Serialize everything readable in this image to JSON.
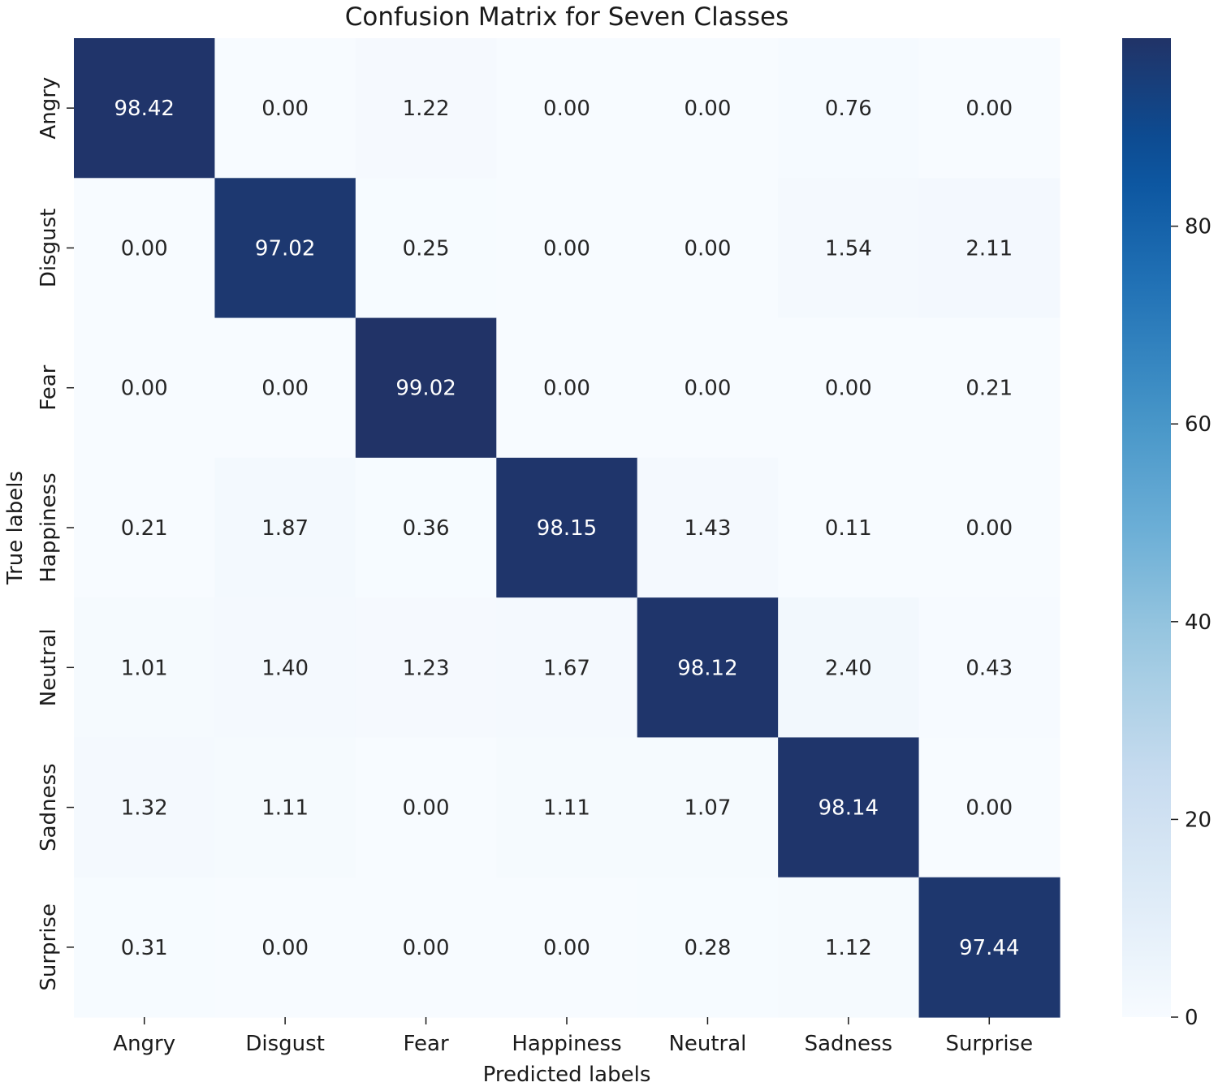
{
  "chart_data": {
    "type": "heatmap",
    "title": "Confusion Matrix for Seven Classes",
    "xlabel": "Predicted labels",
    "ylabel": "True labels",
    "x_categories": [
      "Angry",
      "Disgust",
      "Fear",
      "Happiness",
      "Neutral",
      "Sadness",
      "Surprise"
    ],
    "y_categories": [
      "Angry",
      "Disgust",
      "Fear",
      "Happiness",
      "Neutral",
      "Sadness",
      "Surprise"
    ],
    "values": [
      [
        98.42,
        0.0,
        1.22,
        0.0,
        0.0,
        0.76,
        0.0
      ],
      [
        0.0,
        97.02,
        0.25,
        0.0,
        0.0,
        1.54,
        2.11
      ],
      [
        0.0,
        0.0,
        99.02,
        0.0,
        0.0,
        0.0,
        0.21
      ],
      [
        0.21,
        1.87,
        0.36,
        98.15,
        1.43,
        0.11,
        0.0
      ],
      [
        1.01,
        1.4,
        1.23,
        1.67,
        98.12,
        2.4,
        0.43
      ],
      [
        1.32,
        1.11,
        0.0,
        1.11,
        1.07,
        98.14,
        0.0
      ],
      [
        0.31,
        0.0,
        0.0,
        0.0,
        0.28,
        1.12,
        97.44
      ]
    ],
    "value_format": "2 decimals",
    "colormap": "Blues",
    "colorbar": {
      "range": [
        0,
        99.02
      ],
      "ticks": [
        0,
        20,
        40,
        60,
        80
      ],
      "tick_labels": [
        "0",
        "20",
        "40",
        "60",
        "80"
      ]
    },
    "colors": {
      "low": "#f7fbff",
      "high": "#08306b",
      "annotation_light": "#ffffff",
      "annotation_dark": "#262626"
    },
    "grid": false
  }
}
